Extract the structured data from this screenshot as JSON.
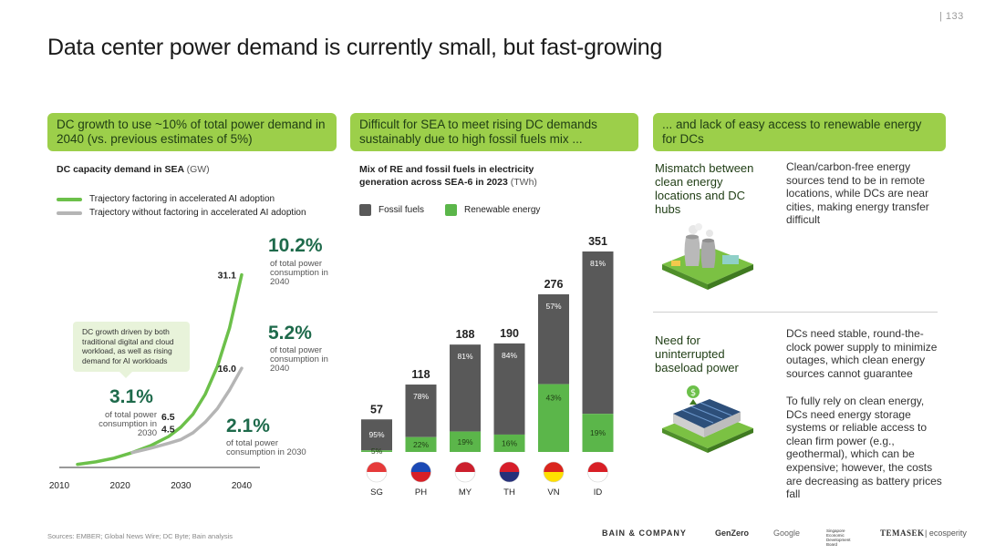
{
  "page_number": "| 133",
  "title": "Data center power demand is currently small, but fast-growing",
  "headers": [
    "DC growth to use ~10% of total power demand in 2040 (vs. previous estimates of 5%)",
    "Difficult for SEA to meet rising DC demands sustainably due to high fossil fuels mix ...",
    "... and lack of easy access to renewable energy for DCs"
  ],
  "colors": {
    "accent_green": "#9ccf4a",
    "line_green": "#6cc04a",
    "line_gray": "#b5b5b5",
    "fossil": "#595959",
    "renewable": "#5bb64a",
    "dark_green_text": "#1e6a4b"
  },
  "left_panel": {
    "subtitle": "DC capacity demand in SEA",
    "subtitle_unit": "(GW)",
    "legend": [
      {
        "label": "Trajectory factoring in accelerated AI adoption",
        "color": "#6cc04a"
      },
      {
        "label": "Trajectory without factoring in accelerated AI adoption",
        "color": "#b5b5b5"
      }
    ],
    "callout": "DC growth driven by both traditional digital and cloud workload, as well as rising demand for AI workloads",
    "annotations": {
      "pct_2040_green": "10.2%",
      "note_2040_green": "of total power consumption in 2040",
      "pct_2040_gray": "5.2%",
      "note_2040_gray": "of total power consumption in 2040",
      "pct_2030_green": "3.1%",
      "note_2030_green": "of total power consumption in 2030",
      "pct_2030_gray": "2.1%",
      "note_2030_gray": "of total power consumption in 2030"
    }
  },
  "chart_data": [
    {
      "type": "line",
      "title": "DC capacity demand in SEA (GW)",
      "xlabel": "",
      "ylabel": "GW",
      "x_ticks": [
        "2010",
        "2020",
        "2030",
        "2040"
      ],
      "xlim": [
        2010,
        2040
      ],
      "ylim": [
        0,
        35
      ],
      "series": [
        {
          "name": "Trajectory factoring in accelerated AI adoption",
          "x": [
            2013,
            2016,
            2019,
            2022,
            2025,
            2028,
            2030,
            2032,
            2034,
            2036,
            2038,
            2040
          ],
          "values": [
            0.5,
            0.9,
            1.5,
            2.4,
            3.5,
            5.0,
            6.5,
            8.6,
            11.8,
            16.3,
            22.5,
            31.1
          ],
          "labels": [
            {
              "x": 2030,
              "y": 6.5,
              "text": "6.5"
            },
            {
              "x": 2040,
              "y": 31.1,
              "text": "31.1"
            }
          ]
        },
        {
          "name": "Trajectory without factoring in accelerated AI adoption",
          "x": [
            2022,
            2025,
            2028,
            2030,
            2032,
            2034,
            2036,
            2038,
            2040
          ],
          "values": [
            2.4,
            3.1,
            3.9,
            4.5,
            5.6,
            7.3,
            9.5,
            12.5,
            16.0
          ],
          "labels": [
            {
              "x": 2030,
              "y": 4.5,
              "text": "4.5"
            },
            {
              "x": 2040,
              "y": 16.0,
              "text": "16.0"
            }
          ]
        }
      ]
    },
    {
      "type": "bar",
      "title": "Mix of RE and fossil fuels in electricity generation across SEA-6 in 2023",
      "title_unit": "(TWh)",
      "categories": [
        "SG",
        "PH",
        "MY",
        "TH",
        "VN",
        "ID"
      ],
      "totals": [
        57,
        118,
        188,
        190,
        276,
        351
      ],
      "series": [
        {
          "name": "Renewable energy",
          "share_pct": [
            5,
            22,
            19,
            16,
            43,
            19
          ],
          "labels": [
            "5%",
            "22%",
            "19%",
            "16%",
            "43%",
            "19%"
          ]
        },
        {
          "name": "Fossil fuels",
          "share_pct": [
            95,
            78,
            81,
            84,
            57,
            81
          ],
          "labels": [
            "95%",
            "78%",
            "81%",
            "84%",
            "57%",
            "81%"
          ]
        }
      ],
      "legend": [
        "Fossil fuels",
        "Renewable energy"
      ],
      "ylim": [
        0,
        351
      ]
    }
  ],
  "right_panel": {
    "block1_head": "Mismatch between clean energy locations and DC hubs",
    "block1_text": "Clean/carbon-free energy sources tend to be in remote locations, while DCs are near cities, making energy transfer difficult",
    "block2_head": "Need for uninterrupted baseload power",
    "block2_text1": "DCs need stable, round-the-clock power supply to minimize outages, which clean energy sources cannot guarantee",
    "block2_text2": "To fully rely on clean energy, DCs need energy storage systems or reliable access to clean firm power (e.g., geothermal), which can be expensive; however, the costs are decreasing as battery prices fall"
  },
  "footer": {
    "sources": "Sources: EMBER; Global News Wire; DC Byte; Bain analysis",
    "logos": [
      "BAIN & COMPANY",
      "GenZero",
      "Google",
      "Singapore Economic Development Board",
      "TEMASEK",
      "ecosperity"
    ]
  }
}
